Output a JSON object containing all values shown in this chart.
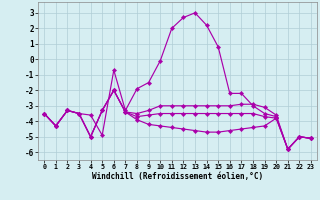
{
  "xlabel": "Windchill (Refroidissement éolien,°C)",
  "xlim": [
    -0.5,
    23.5
  ],
  "ylim": [
    -6.5,
    3.7
  ],
  "yticks": [
    -6,
    -5,
    -4,
    -3,
    -2,
    -1,
    0,
    1,
    2,
    3
  ],
  "xticks": [
    0,
    1,
    2,
    3,
    4,
    5,
    6,
    7,
    8,
    9,
    10,
    11,
    12,
    13,
    14,
    15,
    16,
    17,
    18,
    19,
    20,
    21,
    22,
    23
  ],
  "background_color": "#d6eef2",
  "grid_color": "#b0cdd6",
  "line_color": "#aa00aa",
  "lines": [
    [
      -3.5,
      -4.3,
      -3.3,
      -3.5,
      -3.6,
      -4.9,
      -0.7,
      -3.3,
      -1.9,
      -1.5,
      -0.1,
      2.0,
      2.7,
      3.0,
      2.2,
      0.8,
      -2.2,
      -2.2,
      -3.0,
      -3.5,
      -3.7,
      -5.8,
      -5.0,
      -5.1
    ],
    [
      -3.5,
      -4.3,
      -3.3,
      -3.5,
      -5.0,
      -3.3,
      -2.0,
      -3.4,
      -3.5,
      -3.3,
      -3.0,
      -3.0,
      -3.0,
      -3.0,
      -3.0,
      -3.0,
      -3.0,
      -2.9,
      -2.9,
      -3.1,
      -3.6,
      -5.8,
      -5.0,
      -5.1
    ],
    [
      -3.5,
      -4.3,
      -3.3,
      -3.5,
      -5.0,
      -3.3,
      -2.0,
      -3.4,
      -3.7,
      -3.6,
      -3.5,
      -3.5,
      -3.5,
      -3.5,
      -3.5,
      -3.5,
      -3.5,
      -3.5,
      -3.5,
      -3.7,
      -3.8,
      -5.8,
      -5.0,
      -5.1
    ],
    [
      -3.5,
      -4.3,
      -3.3,
      -3.5,
      -5.0,
      -3.3,
      -2.0,
      -3.4,
      -3.9,
      -4.2,
      -4.3,
      -4.4,
      -4.5,
      -4.6,
      -4.7,
      -4.7,
      -4.6,
      -4.5,
      -4.4,
      -4.3,
      -3.8,
      -5.8,
      -5.0,
      -5.1
    ]
  ]
}
